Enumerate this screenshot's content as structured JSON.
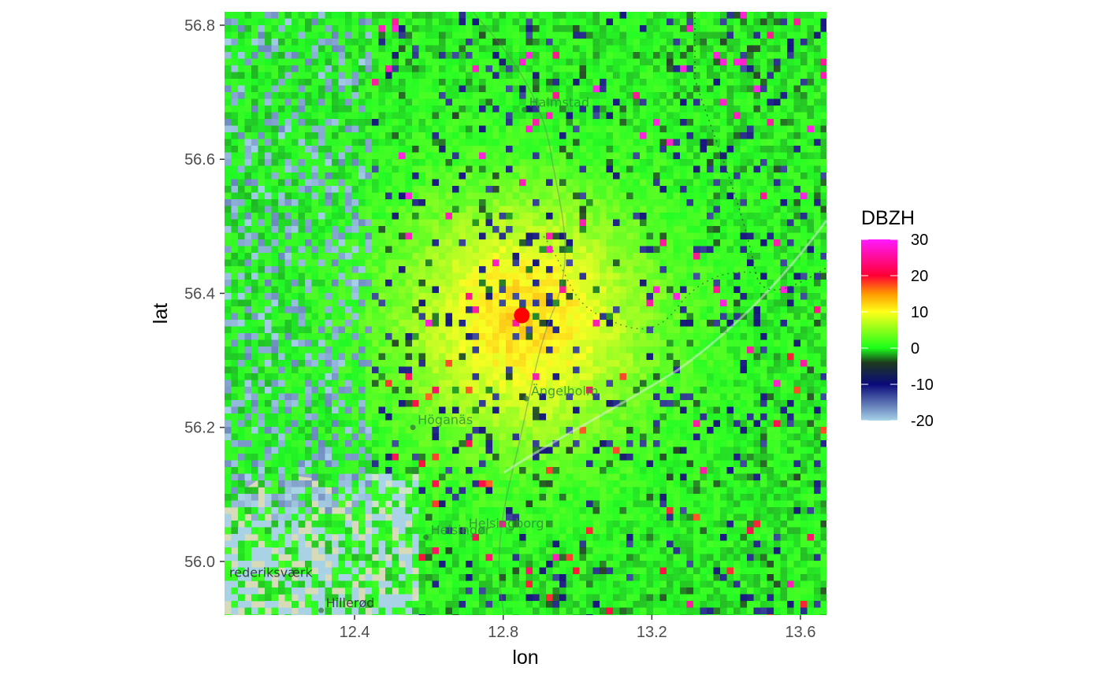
{
  "chart_data": {
    "type": "heatmap",
    "title": "",
    "xlabel": "lon",
    "ylabel": "lat",
    "xlim": [
      12.05,
      13.67
    ],
    "ylim": [
      55.92,
      56.82
    ],
    "x_ticks": [
      12.4,
      12.8,
      13.2,
      13.6
    ],
    "x_tick_labels": [
      "12.4",
      "12.8",
      "13.2",
      "13.6"
    ],
    "y_ticks": [
      56.0,
      56.2,
      56.4,
      56.6,
      56.8
    ],
    "y_tick_labels": [
      "56.0",
      "56.2",
      "56.4",
      "56.6",
      "56.8"
    ],
    "legend": {
      "title": "DBZH",
      "position": "right",
      "range": [
        -20,
        30
      ],
      "ticks": [
        30,
        20,
        10,
        0,
        -10,
        -20
      ],
      "tick_labels": [
        "30",
        "20",
        "10",
        "0",
        "-10",
        "-20"
      ],
      "colors": [
        {
          "value": -20,
          "color": "#a6d2e8"
        },
        {
          "value": -10,
          "color": "#0a0a7a"
        },
        {
          "value": -4,
          "color": "#1d3a1d"
        },
        {
          "value": 0,
          "color": "#19ff19"
        },
        {
          "value": 10,
          "color": "#ffff19"
        },
        {
          "value": 15,
          "color": "#ff9900"
        },
        {
          "value": 20,
          "color": "#ff0033"
        },
        {
          "value": 30,
          "color": "#ff19ff"
        }
      ]
    },
    "radar_site": {
      "lon": 12.85,
      "lat": 56.367,
      "color": "#ff0000"
    },
    "field_description_values": {
      "background_mean": 0,
      "near_radar_max": 12,
      "clutter_max": 22
    }
  },
  "map_labels": [
    {
      "name": "Halmstad",
      "lon": 12.857,
      "lat": 56.674
    },
    {
      "name": "Ängelholm",
      "lon": 12.862,
      "lat": 56.243
    },
    {
      "name": "Höganäs",
      "lon": 12.557,
      "lat": 56.2
    },
    {
      "name": "Helsingborg",
      "lon": 12.694,
      "lat": 56.046
    },
    {
      "name": "Helsingør",
      "lon": 12.592,
      "lat": 56.036
    },
    {
      "name": "rederiksværk",
      "lon": 12.05,
      "lat": 55.972
    },
    {
      "name": "Hillerød",
      "lon": 12.31,
      "lat": 55.927
    }
  ]
}
